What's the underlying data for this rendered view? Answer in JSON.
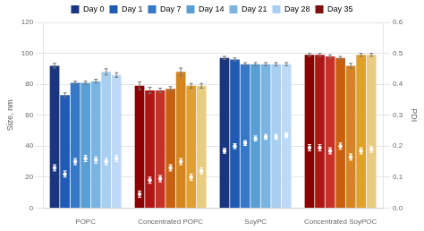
{
  "chart_data": {
    "type": "bar",
    "categories": [
      "POPC",
      "Concentrated POPC",
      "SoyPC",
      "Concentrated SoyPOC"
    ],
    "y_label": "Size, nm",
    "y2_label": "PDI",
    "ylim": [
      0,
      120
    ],
    "yticks": [
      0,
      20,
      40,
      60,
      80,
      100,
      120
    ],
    "y2lim": [
      0,
      0.6
    ],
    "y2ticks": [
      {
        "value": 0,
        "label": "0.0"
      },
      0.1,
      0.2,
      0.3,
      0.4,
      0.5,
      0.6
    ],
    "grid": true,
    "legend": "top",
    "series": [
      {
        "name": "Day 0",
        "color": "#1a3680",
        "colors": [
          "#1a3680",
          "#8b0000",
          "#1a3680",
          "#8b0000"
        ],
        "values": [
          92,
          79,
          97,
          99
        ],
        "errors": [
          1.5,
          2.5,
          1.0,
          1.0
        ]
      },
      {
        "name": "Day 1",
        "color": "#1f5bb5",
        "colors": [
          "#1f5bb5",
          "#b01515",
          "#1f5bb5",
          "#b01515"
        ],
        "values": [
          73,
          76,
          96,
          99
        ],
        "errors": [
          1.5,
          2.0,
          1.0,
          1.0
        ]
      },
      {
        "name": "Day 7",
        "color": "#3578c8",
        "colors": [
          "#3578c8",
          "#c83025",
          "#3578c8",
          "#c83025"
        ],
        "values": [
          81,
          76,
          93,
          98
        ],
        "errors": [
          1.0,
          1.5,
          1.0,
          1.0
        ]
      },
      {
        "name": "Day 14",
        "color": "#5a9fd4",
        "colors": [
          "#5a9fd4",
          "#c86010",
          "#5a9fd4",
          "#c86010"
        ],
        "values": [
          81,
          77,
          93,
          97
        ],
        "errors": [
          1.0,
          1.5,
          1.0,
          1.0
        ]
      },
      {
        "name": "Day 21",
        "color": "#7ab4e0",
        "colors": [
          "#7ab4e0",
          "#d48520",
          "#7ab4e0",
          "#d48520"
        ],
        "values": [
          82,
          88,
          93,
          92
        ],
        "errors": [
          1.2,
          2.5,
          1.0,
          1.5
        ]
      },
      {
        "name": "Day 28",
        "color": "#a8cff0",
        "colors": [
          "#a8cff0",
          "#e0a030",
          "#a8cff0",
          "#e0a030"
        ],
        "values": [
          88,
          79,
          93,
          99
        ],
        "errors": [
          2.0,
          1.5,
          1.0,
          1.0
        ]
      },
      {
        "name": "Day 35",
        "color": "#7b1010",
        "colors": [
          "#bcdaf5",
          "#e8cc80",
          "#bcdaf5",
          "#e8cc80"
        ],
        "values": [
          86,
          79,
          93,
          99
        ],
        "errors": [
          1.5,
          1.5,
          1.0,
          1.0
        ]
      },
      {
        "type": "scatter",
        "axis": "y2",
        "color": "#ffffff",
        "marker": "circle",
        "values": [
          0.13,
          0.045,
          0.185,
          0.195
        ],
        "errors": [
          0.01,
          0.01,
          0.008,
          0.01
        ]
      },
      {
        "type": "scatter",
        "axis": "y2",
        "color": "#ffffff",
        "marker": "circle",
        "values": [
          0.11,
          0.09,
          0.2,
          0.195
        ],
        "errors": [
          0.01,
          0.01,
          0.008,
          0.01
        ]
      },
      {
        "type": "scatter",
        "axis": "y2",
        "color": "#ffffff",
        "marker": "circle",
        "values": [
          0.15,
          0.095,
          0.21,
          0.185
        ],
        "errors": [
          0.01,
          0.01,
          0.008,
          0.01
        ]
      },
      {
        "type": "scatter",
        "axis": "y2",
        "color": "#ffffff",
        "marker": "circle",
        "values": [
          0.16,
          0.13,
          0.225,
          0.2
        ],
        "errors": [
          0.01,
          0.01,
          0.008,
          0.01
        ]
      },
      {
        "type": "scatter",
        "axis": "y2",
        "color": "#ffffff",
        "marker": "circle",
        "values": [
          0.155,
          0.15,
          0.23,
          0.165
        ],
        "errors": [
          0.01,
          0.01,
          0.008,
          0.01
        ]
      },
      {
        "type": "scatter",
        "axis": "y2",
        "color": "#ffffff",
        "marker": "circle",
        "values": [
          0.15,
          0.1,
          0.23,
          0.185
        ],
        "errors": [
          0.01,
          0.01,
          0.008,
          0.01
        ]
      },
      {
        "type": "scatter",
        "axis": "y2",
        "color": "#ffffff",
        "marker": "circle",
        "values": [
          0.16,
          0.12,
          0.235,
          0.19
        ],
        "errors": [
          0.01,
          0.01,
          0.008,
          0.01
        ]
      }
    ]
  }
}
